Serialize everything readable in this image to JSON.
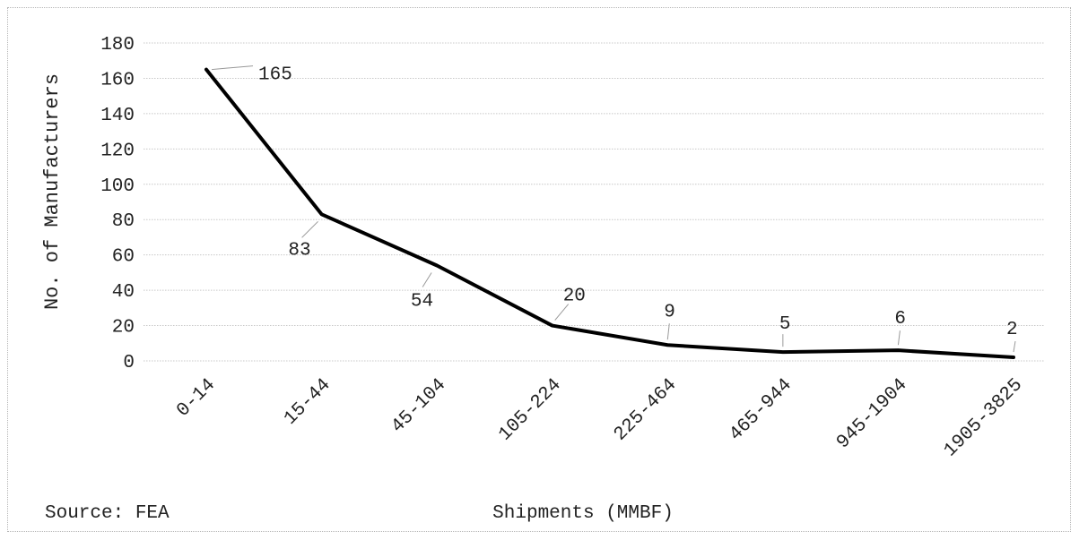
{
  "chart_data": {
    "type": "line",
    "categories": [
      "0-14",
      "15-44",
      "45-104",
      "105-224",
      "225-464",
      "465-944",
      "945-1904",
      "1905-3825"
    ],
    "series": [
      {
        "values": [
          165,
          83,
          54,
          20,
          9,
          5,
          6,
          2
        ]
      }
    ],
    "data_labels": [
      "165",
      "83",
      "54",
      "20",
      "9",
      "5",
      "6",
      "2"
    ],
    "title": "",
    "xlabel": "Shipments (MMBF)",
    "ylabel": "No. of Manufacturers",
    "ylim": [
      0,
      180
    ],
    "yticks": [
      0,
      20,
      40,
      60,
      80,
      100,
      120,
      140,
      160,
      180
    ],
    "grid": true,
    "legend": "none",
    "source_note": "Source: FEA",
    "line_color": "#000000",
    "grid_color": "#c8c8c8"
  }
}
